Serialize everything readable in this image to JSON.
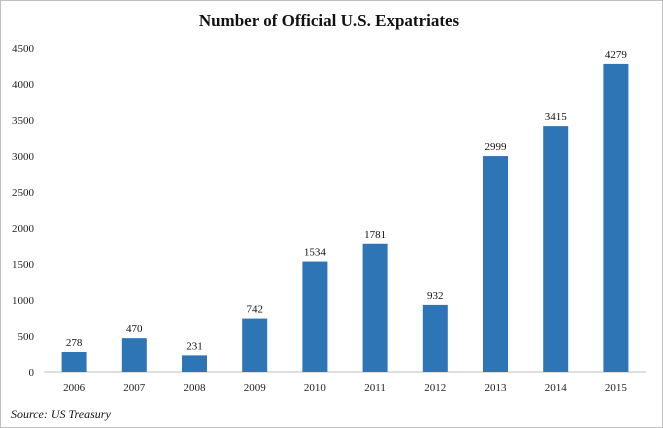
{
  "chart_data": {
    "type": "bar",
    "title": "Number of Official U.S. Expatriates",
    "categories": [
      "2006",
      "2007",
      "2008",
      "2009",
      "2010",
      "2011",
      "2012",
      "2013",
      "2014",
      "2015"
    ],
    "values": [
      278,
      470,
      231,
      742,
      1534,
      1781,
      932,
      2999,
      3415,
      4279
    ],
    "data_labels": [
      "278",
      "470",
      "231",
      "742",
      "1534",
      "1781",
      "932",
      "2999",
      "3415",
      "4279"
    ],
    "y_ticks": [
      "0",
      "500",
      "1000",
      "1500",
      "2000",
      "2500",
      "3000",
      "3500",
      "4000",
      "4500"
    ],
    "ylim": [
      0,
      4500
    ],
    "xlabel": "",
    "ylabel": "",
    "grid": false,
    "source": "Source: US Treasury",
    "colors": {
      "bar": "#2e75b6",
      "axis": "#bfbfbf",
      "text": "#111111"
    }
  }
}
